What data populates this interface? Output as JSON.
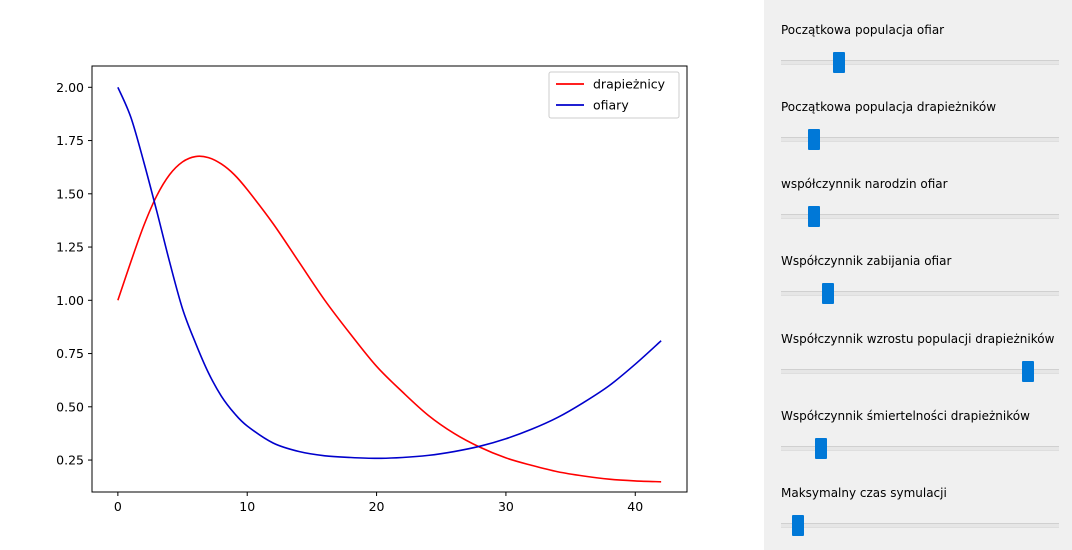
{
  "chart_data": {
    "type": "line",
    "xlim": [
      -2,
      44
    ],
    "ylim": [
      0.1,
      2.1
    ],
    "x_ticks": [
      0,
      10,
      20,
      30,
      40
    ],
    "y_ticks": [
      0.25,
      0.5,
      0.75,
      1.0,
      1.25,
      1.5,
      1.75,
      2.0
    ],
    "x_tick_labels": [
      "0",
      "10",
      "20",
      "30",
      "40"
    ],
    "y_tick_labels": [
      "0.25",
      "0.50",
      "0.75",
      "1.00",
      "1.25",
      "1.50",
      "1.75",
      "2.00"
    ],
    "legend_position": "top-right",
    "grid": false,
    "series": [
      {
        "name": "drapieżnicy",
        "color": "#ff0000",
        "points": [
          [
            0,
            1.0
          ],
          [
            1,
            1.18
          ],
          [
            2,
            1.35
          ],
          [
            3,
            1.49
          ],
          [
            4,
            1.59
          ],
          [
            5,
            1.65
          ],
          [
            6,
            1.675
          ],
          [
            7,
            1.67
          ],
          [
            8,
            1.64
          ],
          [
            9,
            1.59
          ],
          [
            10,
            1.52
          ],
          [
            12,
            1.36
          ],
          [
            14,
            1.18
          ],
          [
            16,
            1.0
          ],
          [
            18,
            0.84
          ],
          [
            20,
            0.69
          ],
          [
            22,
            0.57
          ],
          [
            24,
            0.46
          ],
          [
            26,
            0.375
          ],
          [
            28,
            0.31
          ],
          [
            30,
            0.26
          ],
          [
            32,
            0.225
          ],
          [
            34,
            0.195
          ],
          [
            36,
            0.175
          ],
          [
            38,
            0.16
          ],
          [
            40,
            0.152
          ],
          [
            42,
            0.148
          ]
        ]
      },
      {
        "name": "ofiary",
        "color": "#0000cc",
        "points": [
          [
            0,
            2.0
          ],
          [
            1,
            1.86
          ],
          [
            2,
            1.65
          ],
          [
            3,
            1.42
          ],
          [
            4,
            1.18
          ],
          [
            5,
            0.96
          ],
          [
            6,
            0.8
          ],
          [
            7,
            0.66
          ],
          [
            8,
            0.55
          ],
          [
            9,
            0.47
          ],
          [
            10,
            0.41
          ],
          [
            12,
            0.33
          ],
          [
            14,
            0.29
          ],
          [
            16,
            0.27
          ],
          [
            18,
            0.262
          ],
          [
            20,
            0.258
          ],
          [
            22,
            0.262
          ],
          [
            24,
            0.272
          ],
          [
            26,
            0.29
          ],
          [
            28,
            0.315
          ],
          [
            30,
            0.35
          ],
          [
            32,
            0.395
          ],
          [
            34,
            0.45
          ],
          [
            36,
            0.52
          ],
          [
            38,
            0.6
          ],
          [
            40,
            0.7
          ],
          [
            42,
            0.81
          ]
        ]
      }
    ]
  },
  "controls": {
    "accent_color": "#0078d7",
    "sliders": [
      {
        "label": "Początkowa populacja ofiar",
        "value": 0.21
      },
      {
        "label": "Początkowa populacja drapieżników",
        "value": 0.12
      },
      {
        "label": "współczynnik narodzin ofiar",
        "value": 0.12
      },
      {
        "label": "Współczynnik zabijania ofiar",
        "value": 0.17
      },
      {
        "label": "Współczynnik wzrostu populacji drapieżników",
        "value": 0.89
      },
      {
        "label": "Współczynnik śmiertelności drapieżników",
        "value": 0.145
      },
      {
        "label": "Maksymalny czas symulacji",
        "value": 0.06
      }
    ]
  }
}
